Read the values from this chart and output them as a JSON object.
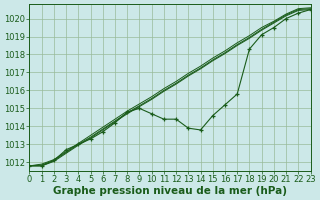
{
  "title": "Graphe pression niveau de la mer (hPa)",
  "bg_color": "#cce8e8",
  "grid_color": "#99bb99",
  "line_color": "#1a5c1a",
  "xlim": [
    0,
    23
  ],
  "ylim": [
    1011.5,
    1020.8
  ],
  "yticks": [
    1012,
    1013,
    1014,
    1015,
    1016,
    1017,
    1018,
    1019,
    1020
  ],
  "xticks": [
    0,
    1,
    2,
    3,
    4,
    5,
    6,
    7,
    8,
    9,
    10,
    11,
    12,
    13,
    14,
    15,
    16,
    17,
    18,
    19,
    20,
    21,
    22,
    23
  ],
  "main_series": [
    1011.8,
    1011.8,
    1012.1,
    1012.7,
    1013.0,
    1013.3,
    1013.7,
    1014.2,
    1014.8,
    1015.0,
    1014.7,
    1014.4,
    1014.4,
    1013.9,
    1013.8,
    1014.6,
    1015.2,
    1015.8,
    1018.3,
    1019.1,
    1019.5,
    1020.0,
    1020.3,
    1020.5
  ],
  "smooth_series": [
    [
      1011.8,
      1011.85,
      1012.1,
      1012.55,
      1013.0,
      1013.4,
      1013.85,
      1014.3,
      1014.75,
      1015.15,
      1015.55,
      1016.0,
      1016.4,
      1016.85,
      1017.25,
      1017.7,
      1018.1,
      1018.55,
      1018.95,
      1019.4,
      1019.8,
      1020.2,
      1020.5,
      1020.55
    ],
    [
      1011.8,
      1011.9,
      1012.15,
      1012.6,
      1013.05,
      1013.5,
      1013.95,
      1014.4,
      1014.85,
      1015.25,
      1015.65,
      1016.1,
      1016.5,
      1016.95,
      1017.35,
      1017.8,
      1018.2,
      1018.65,
      1019.05,
      1019.5,
      1019.85,
      1020.25,
      1020.55,
      1020.6
    ],
    [
      1011.8,
      1011.8,
      1012.05,
      1012.5,
      1012.95,
      1013.35,
      1013.8,
      1014.25,
      1014.7,
      1015.1,
      1015.5,
      1015.95,
      1016.35,
      1016.8,
      1017.2,
      1017.65,
      1018.05,
      1018.5,
      1018.9,
      1019.35,
      1019.75,
      1020.15,
      1020.45,
      1020.5
    ]
  ],
  "title_fontsize": 7.5,
  "tick_fontsize": 6
}
